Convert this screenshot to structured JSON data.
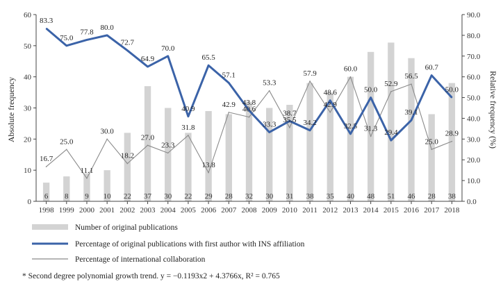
{
  "chart_data": {
    "type": "bar+line",
    "x": [
      "1998",
      "1999",
      "2000",
      "2001",
      "2002",
      "2003",
      "2004",
      "2005",
      "2006",
      "2007",
      "2008",
      "2009",
      "2010",
      "2011",
      "2012",
      "2013",
      "2014",
      "2015",
      "2016",
      "2017",
      "2018"
    ],
    "y_left_label": "Absolute frequency",
    "y_right_label": "Relative frequency (%)",
    "y_left_ticks": [
      0,
      10,
      20,
      30,
      40,
      50,
      60
    ],
    "y_right_ticks": [
      "0.0",
      "10.0",
      "20.0",
      "30.0",
      "40.0",
      "50.0",
      "60.0",
      "70.0",
      "80.0",
      "90.0"
    ],
    "ylim_left": [
      0,
      60
    ],
    "ylim_right": [
      0,
      90
    ],
    "series": [
      {
        "name": "Number of original publications",
        "kind": "bar",
        "axis": "left",
        "color": "#d3d3d3",
        "values": [
          6,
          8,
          9,
          10,
          22,
          37,
          30,
          22,
          29,
          28,
          32,
          30,
          31,
          38,
          35,
          40,
          48,
          51,
          46,
          28,
          38
        ]
      },
      {
        "name": "Percentage of original publications with first author with INS affiliation",
        "kind": "line",
        "axis": "right",
        "color": "#3b63a8",
        "values": [
          83.3,
          75.0,
          77.8,
          80.0,
          72.7,
          64.9,
          70.0,
          40.9,
          65.5,
          57.1,
          43.8,
          33.3,
          38.7,
          34.2,
          48.6,
          32.5,
          50.0,
          29.4,
          39.1,
          60.7,
          50.0
        ]
      },
      {
        "name": "Percentage of international collaboration",
        "kind": "line",
        "axis": "right",
        "color": "#8a8a8a",
        "values": [
          16.7,
          25.0,
          11.1,
          30.0,
          18.2,
          27.0,
          23.3,
          31.8,
          13.8,
          42.9,
          40.6,
          53.3,
          35.5,
          57.9,
          42.9,
          60.0,
          31.3,
          52.9,
          56.5,
          25.0,
          28.9
        ]
      }
    ],
    "blue_labels": [
      "83.3",
      "75.0",
      "77.8",
      "80.0",
      "72.7",
      "64.9",
      "70.0",
      "40.9",
      "65.5",
      "57.1",
      "43.8",
      "33.3",
      "38.7",
      "34.2",
      "48.6",
      "32.5",
      "50.0",
      "29.4",
      "39.1",
      "60.7",
      "50.0"
    ],
    "gray_labels": [
      "16.7",
      "25.0",
      "11.1",
      "30.0",
      "18.2",
      "27.0",
      "23.3",
      "31.8",
      "13.8",
      "42.9",
      "40.6",
      "53.3",
      "35.5",
      "57.9",
      "42.9",
      "60.0",
      "31.3",
      "52.9",
      "56.5",
      "25.0",
      "28.9"
    ],
    "bar_labels": [
      "6",
      "8",
      "9",
      "10",
      "22",
      "37",
      "30",
      "22",
      "29",
      "28",
      "32",
      "30",
      "31",
      "38",
      "35",
      "40",
      "48",
      "51",
      "46",
      "28",
      "38"
    ],
    "legend_placement": "bottom",
    "grid": false,
    "footnote": "* Second degree polynomial growth trend. y = −0.1193x2 + 4.3766x, R² = 0.765"
  }
}
